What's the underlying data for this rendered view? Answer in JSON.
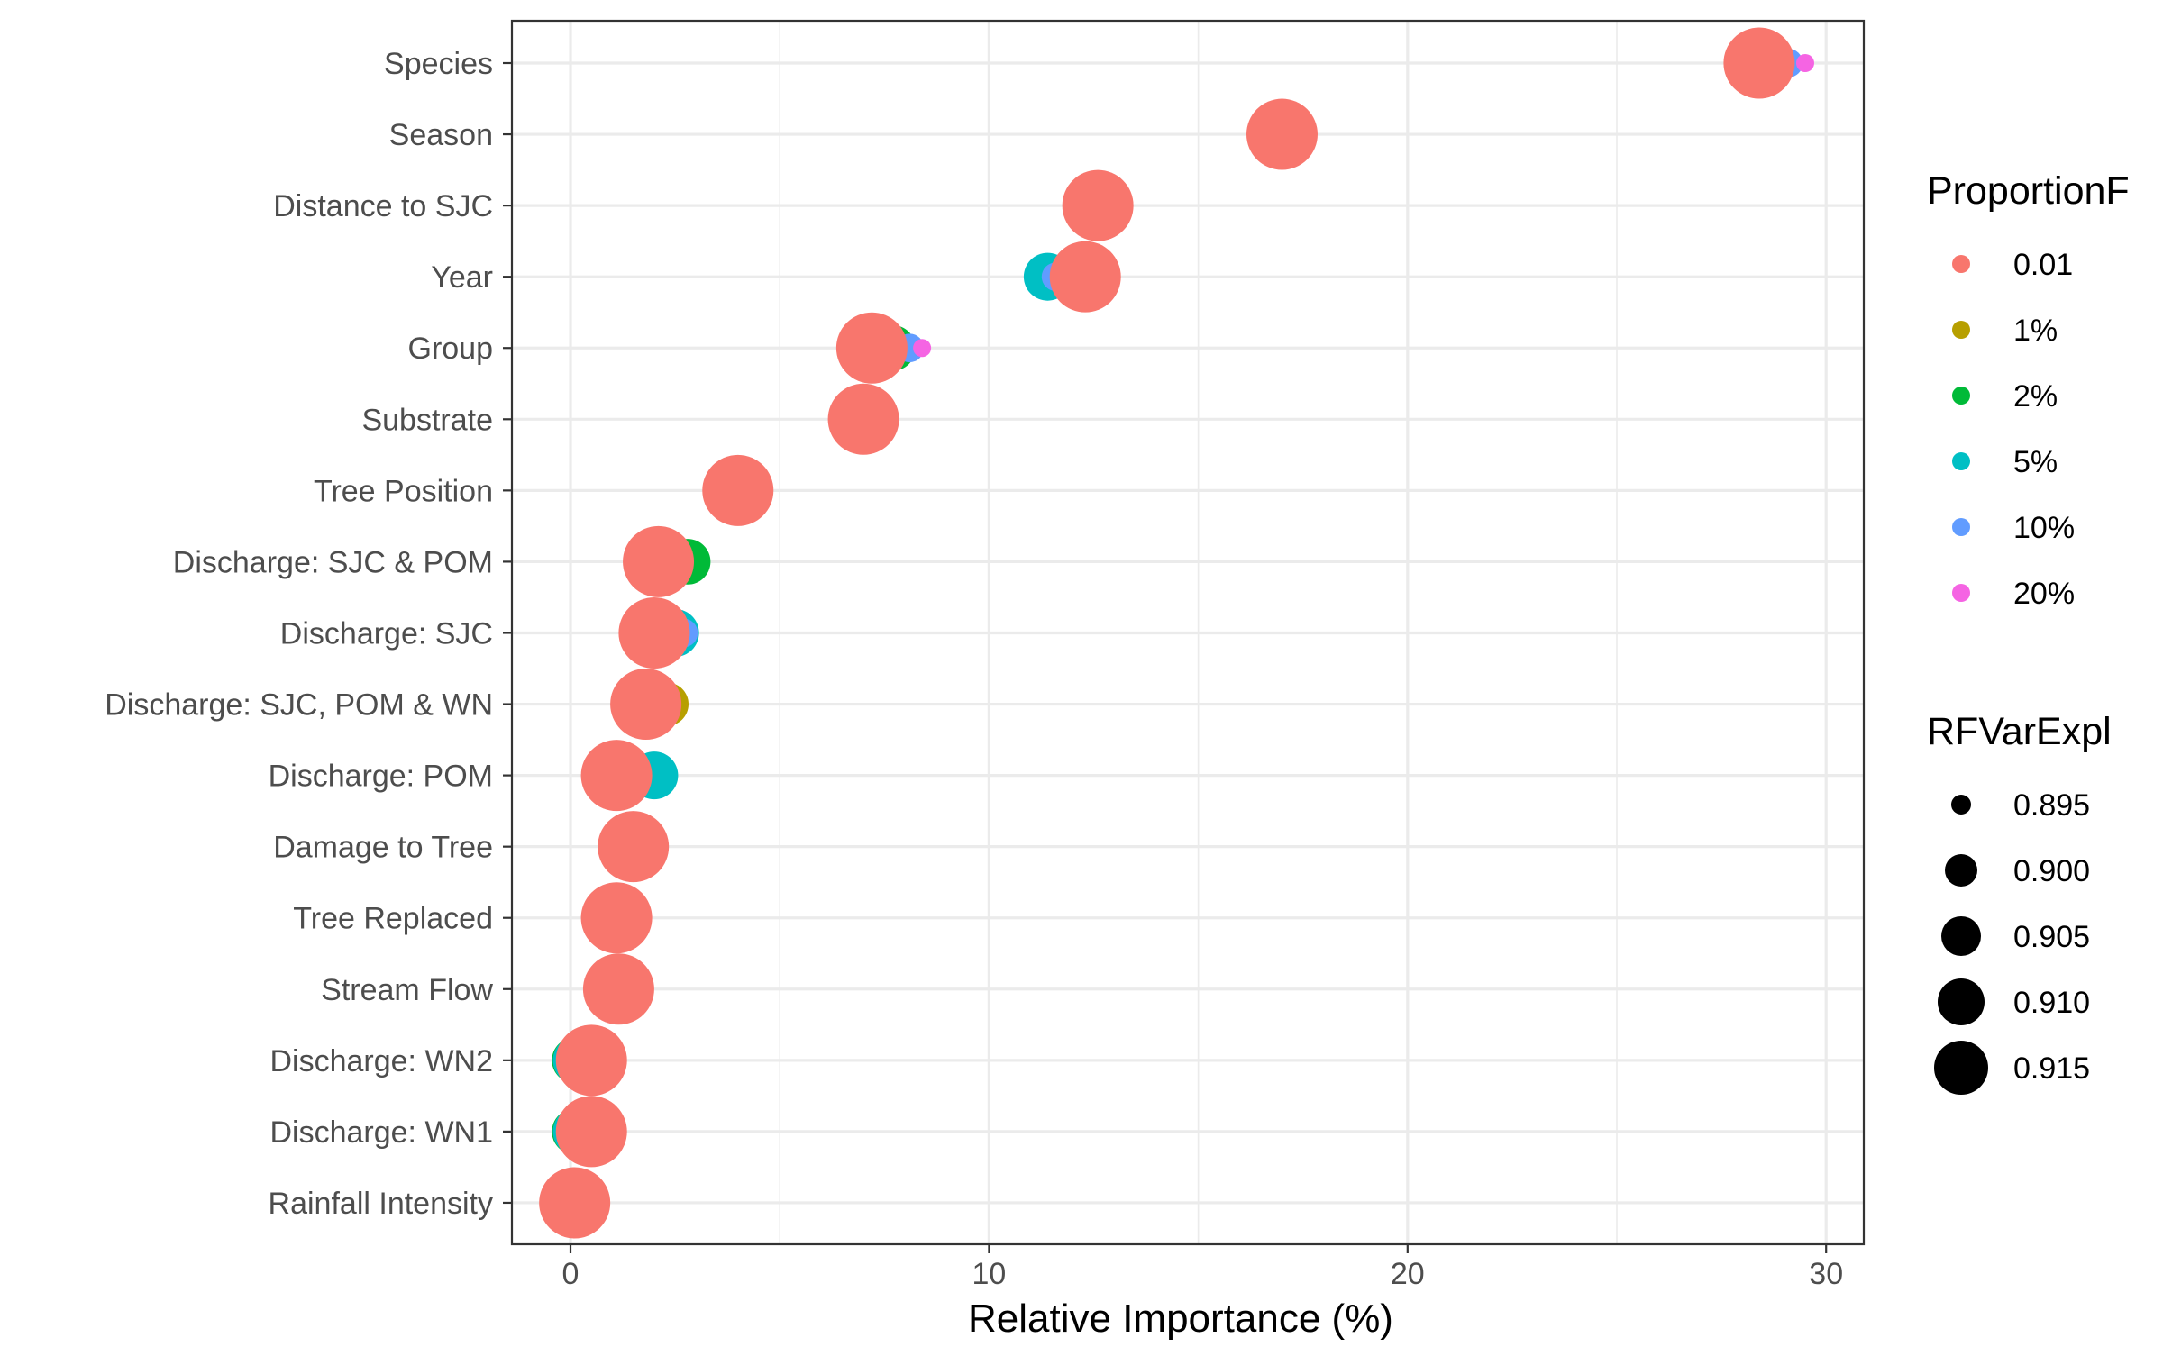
{
  "chart_data": {
    "type": "scatter",
    "xlabel": "Relative Importance (%)",
    "ylabel": "",
    "xlim": [
      -1.4,
      30.9
    ],
    "xticks": [
      0,
      10,
      20,
      30
    ],
    "x_minor_grid": [
      5,
      15,
      25
    ],
    "grid": true,
    "categories": [
      "Species",
      "Season",
      "Distance to SJC",
      "Year",
      "Group",
      "Substrate",
      "Tree Position",
      "Discharge: SJC & POM",
      "Discharge: SJC",
      "Discharge: SJC, POM & WN",
      "Discharge: POM",
      "Damage to Tree",
      "Tree Replaced",
      "Stream Flow",
      "Discharge: WN2",
      "Discharge: WN1",
      "Rainfall Intensity"
    ],
    "legend": {
      "position": "right",
      "color_title": "ProportionF",
      "size_title": "RFVarExpl",
      "size_levels": [
        {
          "label": "0.895",
          "value": 0.895
        },
        {
          "label": "0.900",
          "value": 0.9
        },
        {
          "label": "0.905",
          "value": 0.905
        },
        {
          "label": "0.910",
          "value": 0.91
        },
        {
          "label": "0.915",
          "value": 0.915
        }
      ]
    },
    "series": [
      {
        "name": "0.01",
        "color": "#F8766D",
        "size_value": 0.918,
        "points": [
          {
            "y": "Species",
            "x": 28.4
          },
          {
            "y": "Season",
            "x": 17.0
          },
          {
            "y": "Distance to SJC",
            "x": 12.6
          },
          {
            "y": "Year",
            "x": 12.3
          },
          {
            "y": "Group",
            "x": 7.2
          },
          {
            "y": "Substrate",
            "x": 7.0
          },
          {
            "y": "Tree Position",
            "x": 4.0
          },
          {
            "y": "Discharge: SJC & POM",
            "x": 2.1
          },
          {
            "y": "Discharge: SJC",
            "x": 2.0
          },
          {
            "y": "Discharge: SJC, POM & WN",
            "x": 1.8
          },
          {
            "y": "Discharge: POM",
            "x": 1.1
          },
          {
            "y": "Damage to Tree",
            "x": 1.5
          },
          {
            "y": "Tree Replaced",
            "x": 1.1
          },
          {
            "y": "Stream Flow",
            "x": 1.15
          },
          {
            "y": "Discharge: WN2",
            "x": 0.5
          },
          {
            "y": "Discharge: WN1",
            "x": 0.5
          },
          {
            "y": "Rainfall Intensity",
            "x": 0.1
          }
        ]
      },
      {
        "name": "1%",
        "color": "#B79F00",
        "size_value": 0.905,
        "points": [
          {
            "y": "Species",
            "x": 28.7
          },
          {
            "y": "Group",
            "x": 7.6
          },
          {
            "y": "Discharge: SJC, POM & WN",
            "x": 2.3
          }
        ]
      },
      {
        "name": "2%",
        "color": "#00BA38",
        "size_value": 0.906,
        "points": [
          {
            "y": "Group",
            "x": 7.7
          },
          {
            "y": "Discharge: SJC & POM",
            "x": 2.8
          },
          {
            "y": "Discharge: WN2",
            "x": 0.1
          },
          {
            "y": "Discharge: WN1",
            "x": 0.1
          }
        ]
      },
      {
        "name": "5%",
        "color": "#00BFC4",
        "size_value": 0.907,
        "points": [
          {
            "y": "Year",
            "x": 11.4
          },
          {
            "y": "Discharge: SJC",
            "x": 2.5
          },
          {
            "y": "Discharge: POM",
            "x": 2.0
          },
          {
            "y": "Discharge: WN2",
            "x": 0.15
          },
          {
            "y": "Discharge: WN1",
            "x": 0.15
          }
        ]
      },
      {
        "name": "10%",
        "color": "#619CFF",
        "size_value": 0.898,
        "points": [
          {
            "y": "Species",
            "x": 29.1
          },
          {
            "y": "Distance to SJC",
            "x": 12.1
          },
          {
            "y": "Year",
            "x": 11.6
          },
          {
            "y": "Group",
            "x": 8.1
          },
          {
            "y": "Discharge: SJC",
            "x": 2.7
          }
        ]
      },
      {
        "name": "20%",
        "color": "#F564E3",
        "size_value": 0.893,
        "points": [
          {
            "y": "Species",
            "x": 29.5
          },
          {
            "y": "Group",
            "x": 8.4
          },
          {
            "y": "Discharge: POM",
            "x": 0.5
          }
        ]
      }
    ]
  }
}
